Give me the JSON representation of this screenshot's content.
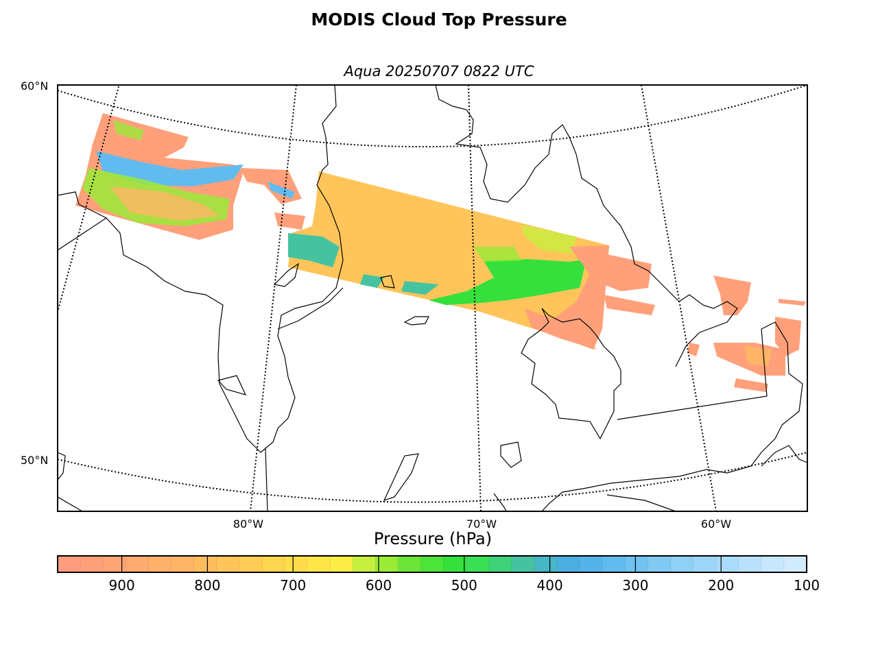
{
  "title": "MODIS Cloud Top Pressure",
  "subtitle": "Aqua 20250707 0822 UTC",
  "lat_labels": [
    "60°N",
    "50°N"
  ],
  "lon_labels": [
    "80°W",
    "70°W",
    "60°W"
  ],
  "colorbar": {
    "label": "Pressure (hPa)",
    "ticks": [
      "900",
      "800",
      "700",
      "600",
      "500",
      "400",
      "300",
      "200",
      "100"
    ],
    "range": [
      975,
      100
    ],
    "colors": [
      "#ff9b7f",
      "#ffa07a",
      "#ffa575",
      "#ffaa70",
      "#ffb06b",
      "#ffb566",
      "#ffbd5e",
      "#ffc55a",
      "#ffcd55",
      "#ffd550",
      "#ffdd4c",
      "#ffe548",
      "#fbed45",
      "#c7ef3f",
      "#9aea38",
      "#6de538",
      "#4ee33a",
      "#35e03c",
      "#3adf55",
      "#40d27a",
      "#45c3a0",
      "#48b7c5",
      "#4aafe0",
      "#55b3ea",
      "#62bbee",
      "#70c2f0",
      "#80caf3",
      "#8fd0f5",
      "#9dd6f8",
      "#abdbfa",
      "#bae1fc",
      "#c7e7fe",
      "#d2ecff"
    ]
  }
}
